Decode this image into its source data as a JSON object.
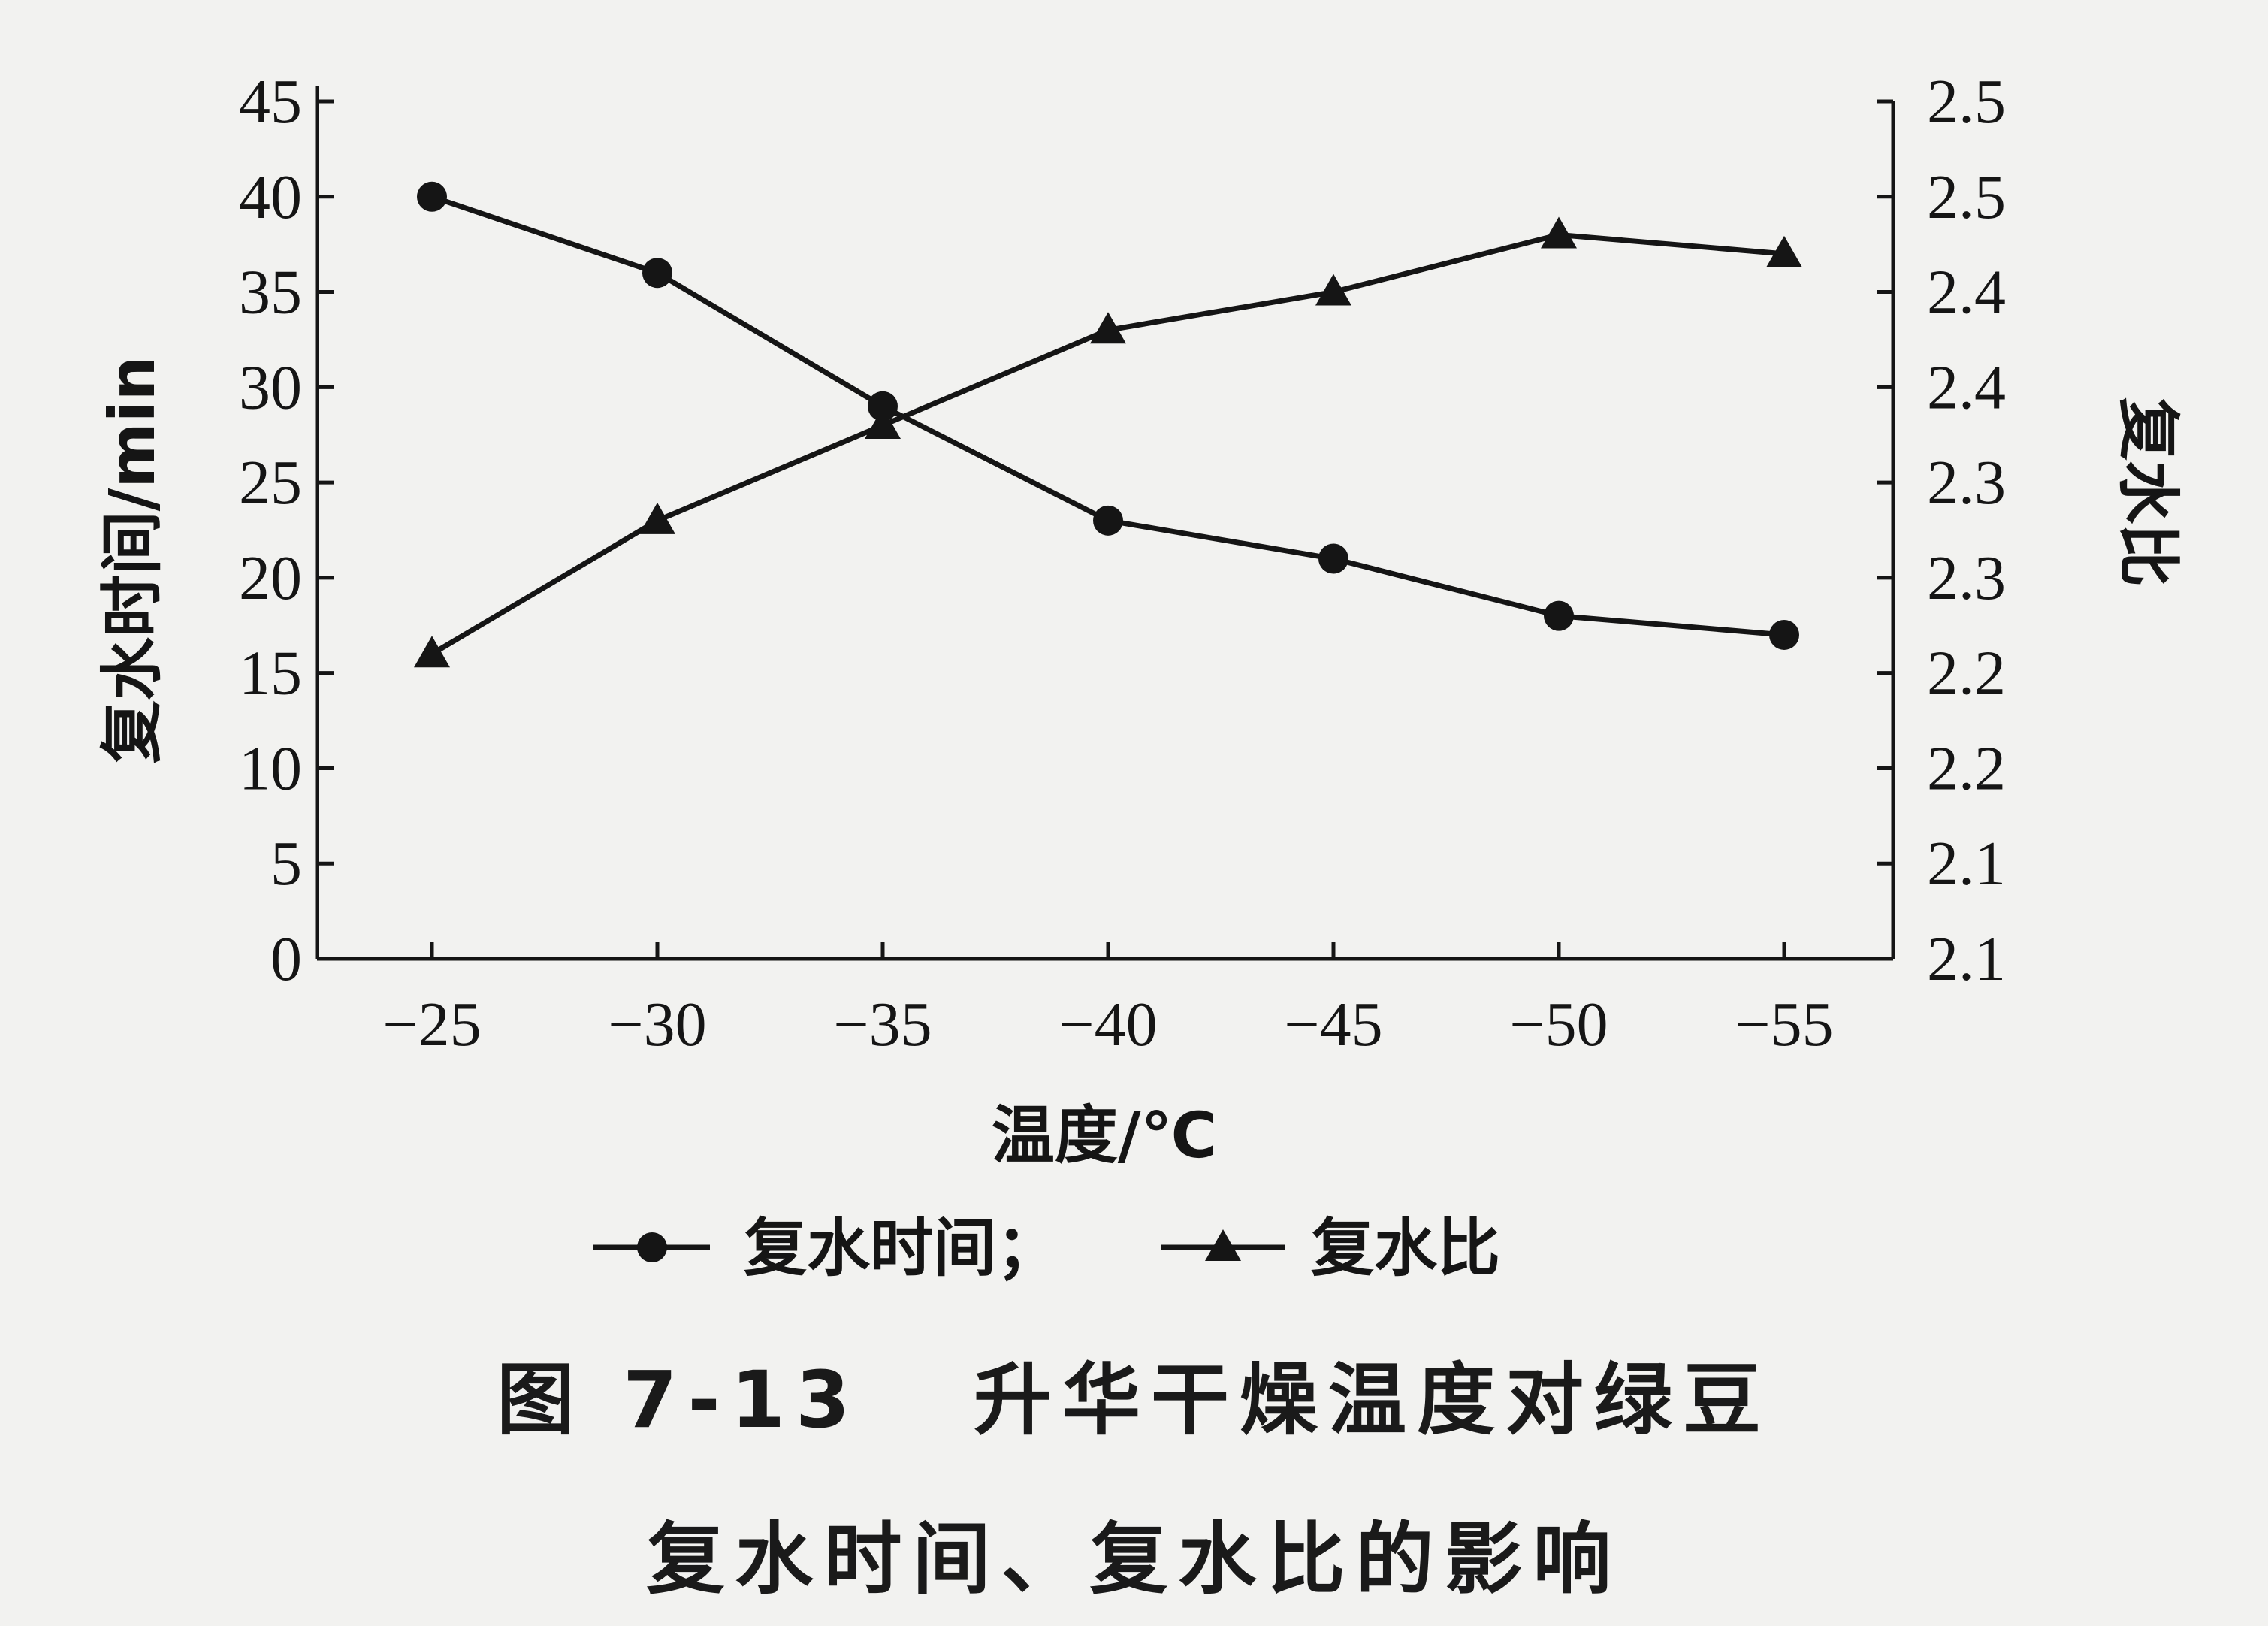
{
  "chart_data": {
    "type": "line",
    "xlabel": "温度/℃",
    "x": [
      -25,
      -30,
      -35,
      -40,
      -45,
      -50,
      -55
    ],
    "x_tick_labels": [
      "−25",
      "−30",
      "−35",
      "−40",
      "−45",
      "−50",
      "−55"
    ],
    "y_left": {
      "label": "复水时间/min",
      "ylim": [
        0,
        45
      ],
      "ticks": [
        "0",
        "5",
        "10",
        "15",
        "20",
        "25",
        "30",
        "35",
        "40",
        "45"
      ]
    },
    "y_right": {
      "label": "复水比",
      "ylim": [
        2.05,
        2.5
      ],
      "ticks": [
        "2.1",
        "2.1",
        "2.2",
        "2.2",
        "2.3",
        "2.3",
        "2.4",
        "2.4",
        "2.5",
        "2.5"
      ]
    },
    "series": [
      {
        "name": "复水时间",
        "axis": "left",
        "marker": "circle",
        "values": [
          40,
          36,
          29,
          23,
          21,
          18,
          17
        ]
      },
      {
        "name": "复水比",
        "axis": "right",
        "marker": "triangle",
        "values": [
          2.21,
          2.28,
          2.33,
          2.38,
          2.4,
          2.43,
          2.42
        ]
      }
    ],
    "legend": {
      "placement": "bottom-center",
      "entries": [
        "复水时间；",
        "复水比"
      ]
    },
    "grid": false
  },
  "caption": {
    "line1": "图 7-13   升华干燥温度对绿豆",
    "line2": "复水时间、复水比的影响"
  },
  "colors": {
    "ink": "#151515",
    "paper": "#f2f2f0"
  }
}
